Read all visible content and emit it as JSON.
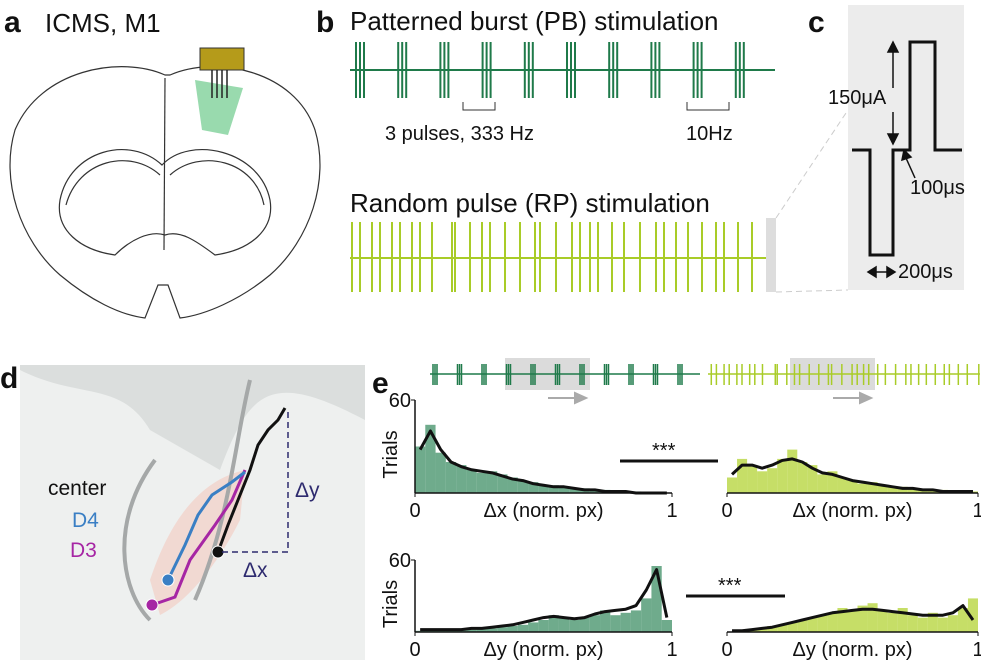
{
  "panels": {
    "a": {
      "letter": "a",
      "title": "ICMS, M1"
    },
    "b": {
      "letter": "b",
      "pb_title": "Patterned burst (PB) stimulation",
      "burst_label": "3 pulses, 333 Hz",
      "rate_label": "10Hz",
      "rp_title": "Random pulse (RP) stimulation"
    },
    "c": {
      "letter": "c",
      "amplitude": "150μA",
      "gap": "100μs",
      "width": "200μs"
    },
    "d": {
      "letter": "d",
      "center": "center",
      "d4": "D4",
      "d3": "D3",
      "dx": "Δx",
      "dy": "Δy"
    },
    "e": {
      "letter": "e",
      "sig_top": "***",
      "sig_bottom": "***"
    }
  },
  "chart_data": [
    {
      "type": "histogram",
      "color": "#3f8f66",
      "ylabel": "Trials",
      "xlabel": "Δx (norm. px)",
      "xlim": [
        0,
        1
      ],
      "ylim": [
        0,
        60
      ],
      "xticks": [
        0,
        1
      ],
      "yticks": [
        60
      ],
      "bins": [
        0,
        0.04,
        0.08,
        0.12,
        0.16,
        0.2,
        0.24,
        0.28,
        0.32,
        0.36,
        0.4,
        0.44,
        0.48,
        0.52,
        0.56,
        0.6,
        0.64,
        0.68,
        0.72,
        0.76,
        0.8,
        0.84,
        0.88,
        0.92,
        0.96,
        1
      ],
      "values": [
        30,
        44,
        26,
        20,
        18,
        15,
        13,
        14,
        12,
        10,
        8,
        7,
        5,
        5,
        4,
        3,
        3,
        2,
        2,
        1,
        1,
        1,
        0,
        0,
        0
      ],
      "curve": [
        28,
        40,
        28,
        20,
        17,
        15,
        14,
        13,
        11,
        9,
        8,
        6,
        5,
        4,
        4,
        3,
        2,
        2,
        1,
        1,
        1,
        0,
        0,
        0,
        0
      ]
    },
    {
      "type": "histogram",
      "color": "#b3d334",
      "xlabel": "Δx (norm. px)",
      "xlim": [
        0,
        1
      ],
      "ylim": [
        0,
        60
      ],
      "xticks": [
        0,
        1
      ],
      "bins": [
        0,
        0.04,
        0.08,
        0.12,
        0.16,
        0.2,
        0.24,
        0.28,
        0.32,
        0.36,
        0.4,
        0.44,
        0.48,
        0.52,
        0.56,
        0.6,
        0.64,
        0.68,
        0.72,
        0.76,
        0.8,
        0.84,
        0.88,
        0.92,
        0.96,
        1
      ],
      "values": [
        10,
        22,
        18,
        14,
        16,
        22,
        28,
        20,
        18,
        12,
        14,
        10,
        8,
        6,
        7,
        5,
        4,
        4,
        3,
        2,
        2,
        2,
        1,
        1,
        1
      ],
      "curve": [
        12,
        18,
        18,
        16,
        18,
        21,
        22,
        20,
        16,
        13,
        12,
        10,
        8,
        7,
        6,
        5,
        4,
        3,
        3,
        2,
        2,
        1,
        1,
        1,
        1
      ]
    },
    {
      "type": "histogram",
      "color": "#3f8f66",
      "ylabel": "Trials",
      "xlabel": "Δy (norm. px)",
      "xlim": [
        0,
        1
      ],
      "ylim": [
        0,
        60
      ],
      "xticks": [
        0,
        1
      ],
      "yticks": [
        60
      ],
      "bins": [
        0,
        0.04,
        0.08,
        0.12,
        0.16,
        0.2,
        0.24,
        0.28,
        0.32,
        0.36,
        0.4,
        0.44,
        0.48,
        0.52,
        0.56,
        0.6,
        0.64,
        0.68,
        0.72,
        0.76,
        0.8,
        0.84,
        0.88,
        0.92,
        0.96,
        1
      ],
      "values": [
        1,
        1,
        1,
        1,
        2,
        2,
        3,
        3,
        4,
        5,
        6,
        8,
        10,
        14,
        12,
        10,
        12,
        14,
        18,
        14,
        16,
        18,
        28,
        55,
        10
      ],
      "curve": [
        2,
        2,
        2,
        2,
        2,
        3,
        3,
        4,
        5,
        6,
        8,
        10,
        12,
        13,
        12,
        11,
        12,
        15,
        17,
        18,
        19,
        22,
        35,
        52,
        12
      ]
    },
    {
      "type": "histogram",
      "color": "#b3d334",
      "xlabel": "Δy (norm. px)",
      "xlim": [
        0,
        1
      ],
      "ylim": [
        0,
        60
      ],
      "xticks": [
        0,
        1
      ],
      "bins": [
        0,
        0.04,
        0.08,
        0.12,
        0.16,
        0.2,
        0.24,
        0.28,
        0.32,
        0.36,
        0.4,
        0.44,
        0.48,
        0.52,
        0.56,
        0.6,
        0.64,
        0.68,
        0.72,
        0.76,
        0.8,
        0.84,
        0.88,
        0.92,
        0.96,
        1
      ],
      "values": [
        0,
        1,
        2,
        3,
        5,
        6,
        8,
        10,
        12,
        14,
        16,
        20,
        18,
        22,
        24,
        18,
        16,
        20,
        14,
        12,
        16,
        12,
        14,
        20,
        28
      ],
      "curve": [
        1,
        1,
        2,
        3,
        4,
        6,
        8,
        10,
        12,
        14,
        16,
        17,
        18,
        19,
        19,
        18,
        17,
        16,
        15,
        14,
        14,
        14,
        16,
        22,
        10
      ]
    }
  ]
}
